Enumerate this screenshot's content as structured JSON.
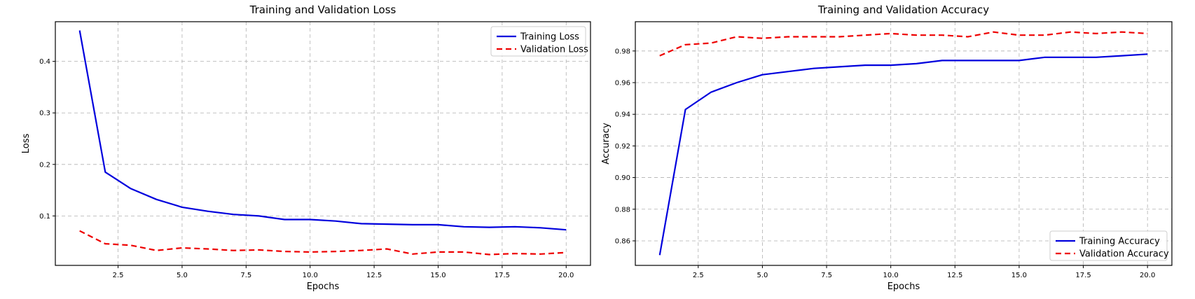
{
  "chart_data": [
    {
      "type": "line",
      "title": "Training and Validation Loss",
      "xlabel": "Epochs",
      "ylabel": "Loss",
      "xlim": [
        0.05,
        20.95
      ],
      "ylim": [
        0.004,
        0.477
      ],
      "xticks": [
        2.5,
        5.0,
        7.5,
        10.0,
        12.5,
        15.0,
        17.5,
        20.0
      ],
      "xtick_labels": [
        "2.5",
        "5.0",
        "7.5",
        "10.0",
        "12.5",
        "15.0",
        "17.5",
        "20.0"
      ],
      "yticks": [
        0.1,
        0.2,
        0.3,
        0.4
      ],
      "ytick_labels": [
        "0.1",
        "0.2",
        "0.3",
        "0.4"
      ],
      "grid": true,
      "legend_position": "upper right",
      "x": [
        1,
        2,
        3,
        4,
        5,
        6,
        7,
        8,
        9,
        10,
        11,
        12,
        13,
        14,
        15,
        16,
        17,
        18,
        19,
        20
      ],
      "series": [
        {
          "name": "Training Loss",
          "color": "#0000dd",
          "style": "solid",
          "values": [
            0.46,
            0.185,
            0.153,
            0.132,
            0.117,
            0.109,
            0.103,
            0.1,
            0.093,
            0.093,
            0.09,
            0.085,
            0.084,
            0.083,
            0.083,
            0.079,
            0.078,
            0.079,
            0.077,
            0.073
          ]
        },
        {
          "name": "Validation Loss",
          "color": "#ee0000",
          "style": "dashed",
          "values": [
            0.071,
            0.046,
            0.043,
            0.033,
            0.038,
            0.036,
            0.033,
            0.034,
            0.031,
            0.03,
            0.031,
            0.033,
            0.036,
            0.026,
            0.03,
            0.03,
            0.025,
            0.027,
            0.026,
            0.029
          ]
        }
      ]
    },
    {
      "type": "line",
      "title": "Training and Validation Accuracy",
      "xlabel": "Epochs",
      "ylabel": "Accuracy",
      "xlim": [
        0.05,
        20.95
      ],
      "ylim": [
        0.8445,
        0.9985
      ],
      "xticks": [
        2.5,
        5.0,
        7.5,
        10.0,
        12.5,
        15.0,
        17.5,
        20.0
      ],
      "xtick_labels": [
        "2.5",
        "5.0",
        "7.5",
        "10.0",
        "12.5",
        "15.0",
        "17.5",
        "20.0"
      ],
      "yticks": [
        0.86,
        0.88,
        0.9,
        0.92,
        0.94,
        0.96,
        0.98
      ],
      "ytick_labels": [
        "0.86",
        "0.88",
        "0.90",
        "0.92",
        "0.94",
        "0.96",
        "0.98"
      ],
      "grid": true,
      "legend_position": "lower right",
      "x": [
        1,
        2,
        3,
        4,
        5,
        6,
        7,
        8,
        9,
        10,
        11,
        12,
        13,
        14,
        15,
        16,
        17,
        18,
        19,
        20
      ],
      "series": [
        {
          "name": "Training Accuracy",
          "color": "#0000dd",
          "style": "solid",
          "values": [
            0.851,
            0.943,
            0.954,
            0.96,
            0.965,
            0.967,
            0.969,
            0.97,
            0.971,
            0.971,
            0.972,
            0.974,
            0.974,
            0.974,
            0.974,
            0.976,
            0.976,
            0.976,
            0.977,
            0.978
          ]
        },
        {
          "name": "Validation Accuracy",
          "color": "#ee0000",
          "style": "dashed",
          "values": [
            0.977,
            0.984,
            0.985,
            0.989,
            0.988,
            0.989,
            0.989,
            0.989,
            0.99,
            0.991,
            0.99,
            0.99,
            0.989,
            0.992,
            0.99,
            0.99,
            0.992,
            0.991,
            0.992,
            0.991
          ]
        }
      ]
    }
  ]
}
